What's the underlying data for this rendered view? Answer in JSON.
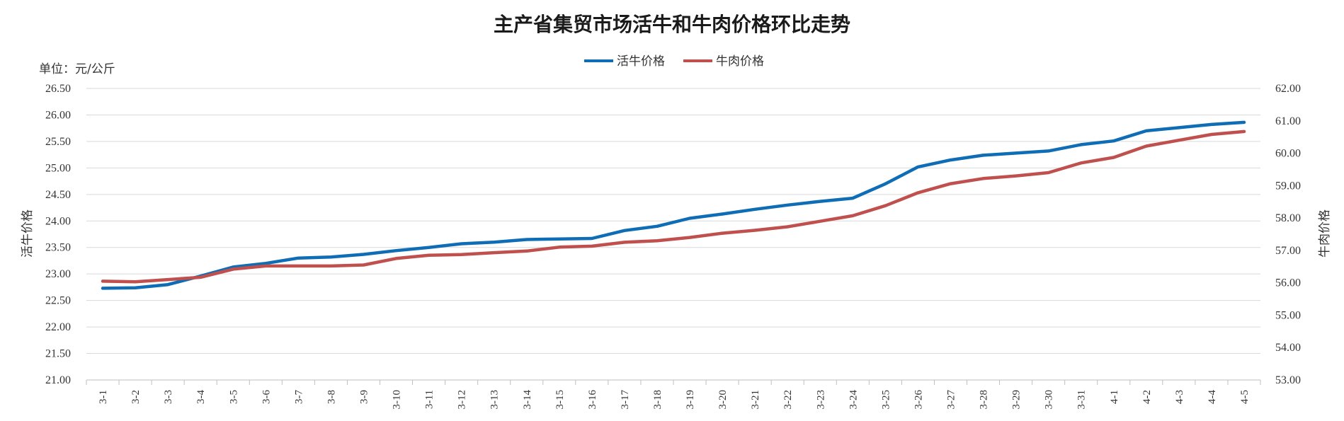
{
  "chart_data": {
    "type": "line",
    "title": "主产省集贸市场活牛和牛肉价格环比走势",
    "unit_label": "单位：元/公斤",
    "ylabel_left": "活牛价格",
    "ylabel_right": "牛肉价格",
    "legend_position": "top-center",
    "grid": true,
    "categories": [
      "3-1",
      "3-2",
      "3-3",
      "3-4",
      "3-5",
      "3-6",
      "3-7",
      "3-8",
      "3-9",
      "3-10",
      "3-11",
      "3-12",
      "3-13",
      "3-14",
      "3-15",
      "3-16",
      "3-17",
      "3-18",
      "3-19",
      "3-20",
      "3-21",
      "3-22",
      "3-23",
      "3-24",
      "3-25",
      "3-26",
      "3-27",
      "3-28",
      "3-29",
      "3-30",
      "3-31",
      "4-1",
      "4-2",
      "4-3",
      "4-4",
      "4-5"
    ],
    "ylim_left": [
      21.0,
      26.5
    ],
    "yticks_left": [
      "21.00",
      "21.50",
      "22.00",
      "22.50",
      "23.00",
      "23.50",
      "24.00",
      "24.50",
      "25.00",
      "25.50",
      "26.00",
      "26.50"
    ],
    "ylim_right": [
      53.0,
      62.0
    ],
    "yticks_right": [
      "53.00",
      "54.00",
      "55.00",
      "56.00",
      "57.00",
      "58.00",
      "59.00",
      "60.00",
      "61.00",
      "62.00"
    ],
    "series": [
      {
        "name": "活牛价格",
        "axis": "left",
        "color": "#0f6db5",
        "values": [
          22.73,
          22.74,
          22.8,
          22.96,
          23.13,
          23.2,
          23.3,
          23.32,
          23.37,
          23.44,
          23.5,
          23.57,
          23.6,
          23.65,
          23.66,
          23.67,
          23.82,
          23.9,
          24.05,
          24.13,
          24.22,
          24.3,
          24.37,
          24.43,
          24.7,
          25.02,
          25.15,
          25.24,
          25.28,
          25.32,
          25.44,
          25.51,
          25.7,
          25.76,
          25.82,
          25.86
        ]
      },
      {
        "name": "牛肉价格",
        "axis": "right",
        "color": "#c0504d",
        "values": [
          56.05,
          56.03,
          56.1,
          56.17,
          56.42,
          56.52,
          56.52,
          56.52,
          56.55,
          56.75,
          56.85,
          56.87,
          56.93,
          56.98,
          57.1,
          57.13,
          57.25,
          57.3,
          57.4,
          57.53,
          57.62,
          57.73,
          57.9,
          58.07,
          58.38,
          58.78,
          59.06,
          59.22,
          59.3,
          59.4,
          59.7,
          59.87,
          60.22,
          60.4,
          60.58,
          60.67
        ]
      }
    ]
  }
}
